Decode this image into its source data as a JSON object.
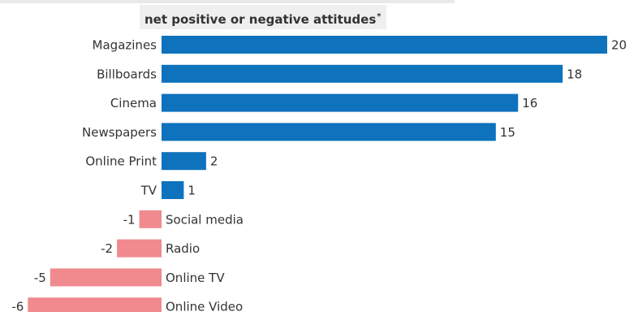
{
  "chart_data": {
    "type": "bar",
    "orientation": "horizontal",
    "subtitle": "net positive or negative attitudes",
    "subtitle_mark": "*",
    "categories": [
      "Magazines",
      "Billboards",
      "Cinema",
      "Newspapers",
      "Online Print",
      "TV",
      "Social media",
      "Radio",
      "Online TV",
      "Online Video"
    ],
    "values": [
      20,
      18,
      16,
      15,
      2,
      1,
      -1,
      -2,
      -5,
      -6
    ],
    "value_labels": [
      "20",
      "18",
      "16",
      "15",
      "2",
      "1",
      "-1",
      "-2",
      "-5",
      "-6"
    ],
    "xlim": [
      -6,
      20
    ],
    "grid": false,
    "colors": {
      "positive": "#0e72bd",
      "negative": "#f08a8e",
      "text": "#333333"
    }
  }
}
